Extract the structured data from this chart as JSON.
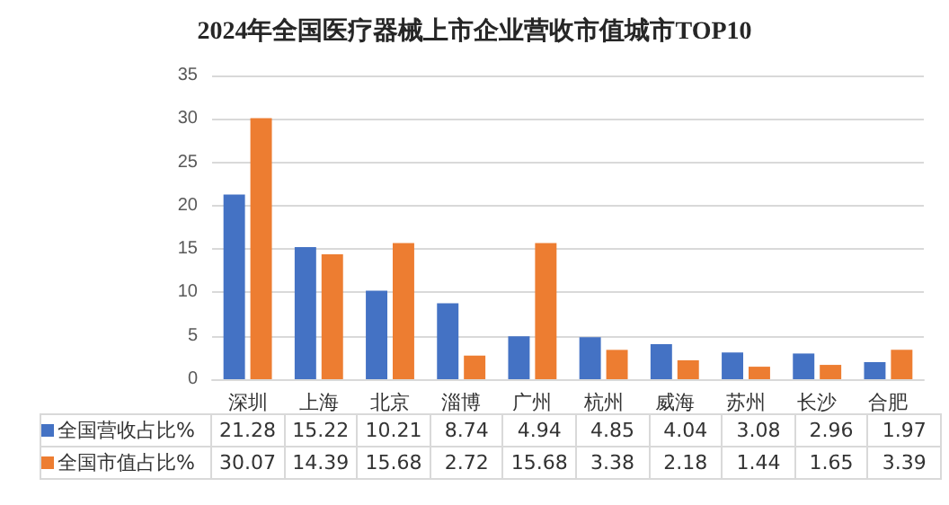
{
  "chart_data": {
    "type": "bar",
    "title": "2024年全国医疗器械上市企业营收市值城市TOP10",
    "categories": [
      "深圳",
      "上海",
      "北京",
      "淄博",
      "广州",
      "杭州",
      "威海",
      "苏州",
      "长沙",
      "合肥"
    ],
    "series": [
      {
        "name": "全国营收占比%",
        "color": "#4472c4",
        "values": [
          21.28,
          15.22,
          10.21,
          8.74,
          4.94,
          4.85,
          4.04,
          3.08,
          2.96,
          1.97
        ]
      },
      {
        "name": "全国市值占比%",
        "color": "#ed7d31",
        "values": [
          30.07,
          14.39,
          15.68,
          2.72,
          15.68,
          3.38,
          2.18,
          1.44,
          1.65,
          3.39
        ]
      }
    ],
    "ylim": [
      0,
      35
    ],
    "yticks": [
      0,
      5,
      10,
      15,
      20,
      25,
      30,
      35
    ],
    "grid": "y",
    "legend": "bottom",
    "data_labels": true
  }
}
